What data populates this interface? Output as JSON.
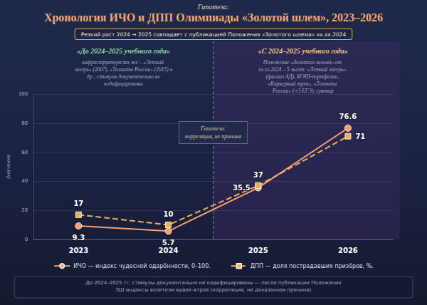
{
  "chart_data": {
    "type": "line",
    "kicker": "Гипотеза:",
    "title": "Хронология ИЧО и ДПП Олимпиады «Золотой шлем», 2023–2026",
    "subtitle": "Резкий рост 2024 → 2025 совпадает с публикацией Положения «Золотого шлема» хх.хх.2024",
    "panels": [
      {
        "title": "«До 2024–2025 учебного года»",
        "text": "инфраструктура та же – «Летний лагерь» (2007), «Таланты России» (2015) и др.; стимулы документально не кодифицированы"
      },
      {
        "title": "«С 2024–2025 учебного года»",
        "text": "Положение «Золотого шлема» от хх.хх.2024 – 5 льгот: «Летний лагерь» (филиал АД), МЭШ-портфолио, «Карьерный трек», «Таланты России» (+3 ЕГЭ), сувенир"
      }
    ],
    "annotation": [
      "Гипотеза:",
      "корреляция, не причина"
    ],
    "footer": "До 2024–2025 гг. стимулы документально не кодифицированы — после публикации Положения ЗШ индексы взлетели вдвое–втрое (корреляция, не доказанная причина).",
    "y_label": "Значение",
    "categories": [
      "2023",
      "2024",
      "2025",
      "2026"
    ],
    "series": [
      {
        "name": "ИЧО — индекс чудесной одарённости, 0–100.",
        "color": "#f4a072",
        "marker": "circle",
        "line_style": "solid",
        "values": [
          9.3,
          5.7,
          35.5,
          76.6
        ]
      },
      {
        "name": "ДПП — доля пострадавших призёров, %.",
        "color": "#e6b25a",
        "marker": "square",
        "line_style": "dashed",
        "values": [
          17,
          10,
          37,
          71
        ]
      }
    ],
    "ylim": [
      0,
      100
    ],
    "yticks": [
      0,
      20,
      40,
      60,
      80,
      100
    ],
    "grid": true,
    "data_labels": true,
    "legend": "bottom"
  }
}
